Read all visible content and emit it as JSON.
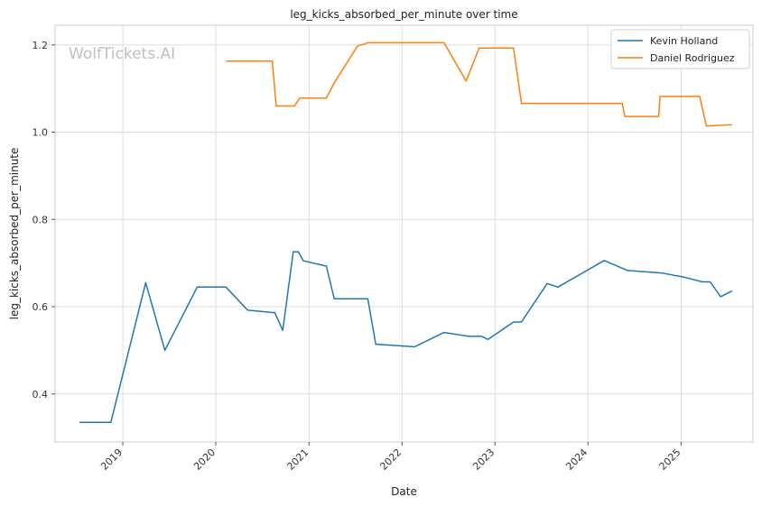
{
  "chart_data": {
    "type": "line",
    "title": "leg_kicks_absorbed_per_minute over time",
    "xlabel": "Date",
    "ylabel": "leg_kicks_absorbed_per_minute",
    "xlim": [
      "2018-04-10",
      "2025-10-10"
    ],
    "ylim": [
      0.29,
      1.245
    ],
    "x_ticks": [
      "2019",
      "2020",
      "2021",
      "2022",
      "2023",
      "2024",
      "2025"
    ],
    "y_ticks": [
      "0.4",
      "0.6",
      "0.8",
      "1.0",
      "1.2"
    ],
    "grid": true,
    "legend_position": "top-right",
    "watermark": "WolfTickets.AI",
    "colors": {
      "Kevin Holland": "#1f77b4",
      "Daniel Rodriguez": "#ff7f0e"
    },
    "series": [
      {
        "name": "Kevin Holland",
        "points": [
          [
            "2018-07-15",
            0.335
          ],
          [
            "2018-11-15",
            0.335
          ],
          [
            "2019-04-01",
            0.655
          ],
          [
            "2019-06-15",
            0.5
          ],
          [
            "2019-10-20",
            0.645
          ],
          [
            "2020-02-10",
            0.645
          ],
          [
            "2020-05-05",
            0.592
          ],
          [
            "2020-08-20",
            0.586
          ],
          [
            "2020-09-20",
            0.546
          ],
          [
            "2020-10-31",
            0.726
          ],
          [
            "2020-11-20",
            0.726
          ],
          [
            "2020-12-10",
            0.705
          ],
          [
            "2021-03-10",
            0.693
          ],
          [
            "2021-04-10",
            0.618
          ],
          [
            "2021-08-20",
            0.618
          ],
          [
            "2021-09-20",
            0.514
          ],
          [
            "2022-02-20",
            0.508
          ],
          [
            "2022-06-15",
            0.541
          ],
          [
            "2022-09-20",
            0.532
          ],
          [
            "2022-11-10",
            0.532
          ],
          [
            "2022-12-05",
            0.525
          ],
          [
            "2023-03-15",
            0.565
          ],
          [
            "2023-04-15",
            0.565
          ],
          [
            "2023-07-25",
            0.653
          ],
          [
            "2023-09-05",
            0.645
          ],
          [
            "2024-03-05",
            0.706
          ],
          [
            "2024-06-05",
            0.683
          ],
          [
            "2024-10-20",
            0.677
          ],
          [
            "2025-01-10",
            0.668
          ],
          [
            "2025-03-25",
            0.657
          ],
          [
            "2025-04-25",
            0.657
          ],
          [
            "2025-06-05",
            0.623
          ],
          [
            "2025-07-20",
            0.636
          ]
        ]
      },
      {
        "name": "Daniel Rodriguez",
        "points": [
          [
            "2020-02-10",
            1.163
          ],
          [
            "2020-08-10",
            1.163
          ],
          [
            "2020-08-25",
            1.06
          ],
          [
            "2020-11-05",
            1.06
          ],
          [
            "2020-11-25",
            1.078
          ],
          [
            "2021-03-10",
            1.078
          ],
          [
            "2021-04-10",
            1.113
          ],
          [
            "2021-07-10",
            1.197
          ],
          [
            "2021-08-20",
            1.205
          ],
          [
            "2022-06-15",
            1.205
          ],
          [
            "2022-09-10",
            1.117
          ],
          [
            "2022-10-31",
            1.193
          ],
          [
            "2023-03-15",
            1.193
          ],
          [
            "2023-04-15",
            1.066
          ],
          [
            "2024-05-15",
            1.066
          ],
          [
            "2024-05-25",
            1.036
          ],
          [
            "2024-10-05",
            1.036
          ],
          [
            "2024-10-10",
            1.082
          ],
          [
            "2025-03-15",
            1.082
          ],
          [
            "2025-04-10",
            1.014
          ],
          [
            "2025-07-20",
            1.017
          ]
        ]
      }
    ]
  }
}
